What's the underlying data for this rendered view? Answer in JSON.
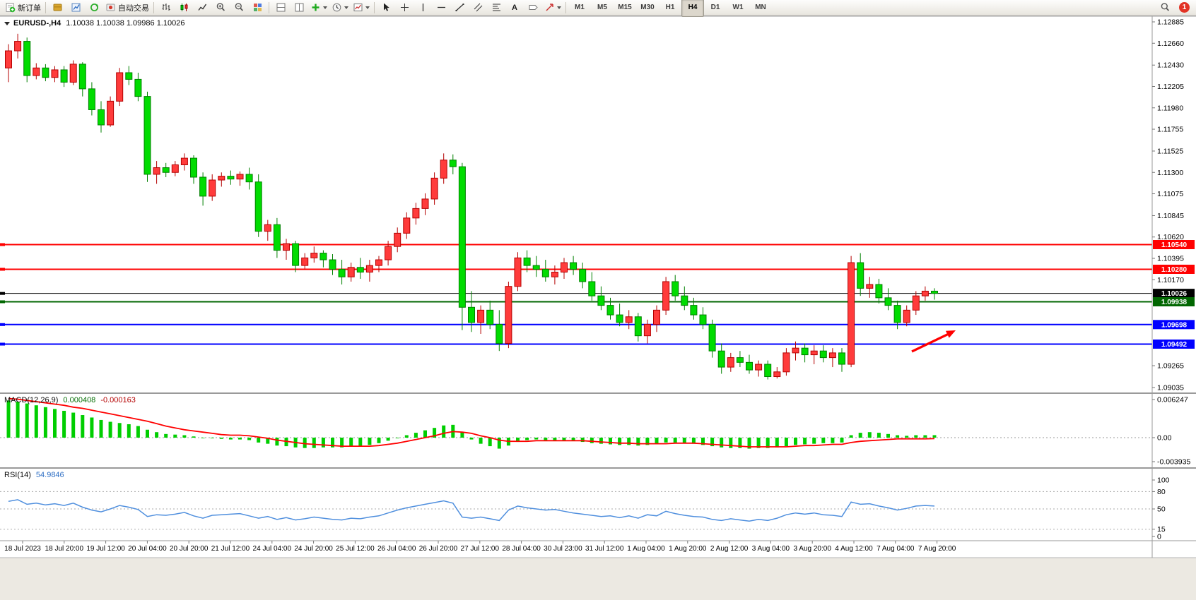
{
  "toolbar": {
    "new_order": "新订单",
    "autotrading": "自动交易",
    "text_tool_glyph": "A",
    "timeframes": [
      "M1",
      "M5",
      "M15",
      "M30",
      "H1",
      "H4",
      "D1",
      "W1",
      "MN"
    ],
    "active_timeframe": "H4",
    "notification_badge": "1"
  },
  "chart": {
    "title": "EURUSD-,H4",
    "ohlc_text": "1.10038 1.10038 1.09986 1.10026"
  },
  "colors": {
    "candle_up": "#FF3B3B",
    "candle_up_border": "#B40000",
    "candle_down": "#00DC00",
    "candle_down_border": "#008000",
    "macd_histogram": "#00CE00",
    "macd_signal": "#FF0000",
    "rsi_line": "#4F8FDE",
    "line_red": "#FF0000",
    "line_blue": "#0000FF",
    "line_green": "#006600",
    "line_black": "#000000",
    "arrow": "#FF0000"
  },
  "chart_data": {
    "type": "candlestick",
    "symbol": "EURUSD-",
    "period": "H4",
    "ohlc_current": {
      "open": 1.10038,
      "high": 1.10038,
      "low": 1.09986,
      "close": 1.10026
    },
    "price_axis": {
      "labels": [
        "1.12885",
        "1.12660",
        "1.12430",
        "1.12205",
        "1.11980",
        "1.11755",
        "1.11525",
        "1.11300",
        "1.11075",
        "1.10845",
        "1.10620",
        "1.10395",
        "1.10170",
        "1.09265",
        "1.09035"
      ]
    },
    "time_axis": {
      "labels": [
        "18 Jul 2023",
        "18 Jul 20:00",
        "19 Jul 12:00",
        "20 Jul 04:00",
        "20 Jul 20:00",
        "21 Jul 12:00",
        "24 Jul 04:00",
        "24 Jul 20:00",
        "25 Jul 12:00",
        "26 Jul 04:00",
        "26 Jul 20:00",
        "27 Jul 12:00",
        "28 Jul 04:00",
        "30 Jul 23:00",
        "31 Jul 12:00",
        "1 Aug 04:00",
        "1 Aug 20:00",
        "2 Aug 12:00",
        "3 Aug 04:00",
        "3 Aug 20:00",
        "4 Aug 12:00",
        "7 Aug 04:00",
        "7 Aug 20:00"
      ]
    },
    "hlines": [
      {
        "price": 1.1054,
        "label": "1.10540",
        "color": "#FF0000",
        "width": 2
      },
      {
        "price": 1.1028,
        "label": "1.10280",
        "color": "#FF0000",
        "width": 2
      },
      {
        "price": 1.10026,
        "label": "1.10026",
        "color": "#000000",
        "width": 1
      },
      {
        "price": 1.09938,
        "label": "1.09938",
        "color": "#006600",
        "width": 2
      },
      {
        "price": 1.09698,
        "label": "1.09698",
        "color": "#0000FF",
        "width": 2
      },
      {
        "price": 1.09492,
        "label": "1.09492",
        "color": "#0000FF",
        "width": 2
      }
    ],
    "candles": [
      [
        1.124,
        1.1265,
        1.1225,
        1.1258
      ],
      [
        1.1258,
        1.1276,
        1.125,
        1.1268
      ],
      [
        1.1268,
        1.1272,
        1.1225,
        1.1232
      ],
      [
        1.1232,
        1.1245,
        1.1228,
        1.124
      ],
      [
        1.124,
        1.1244,
        1.1226,
        1.123
      ],
      [
        1.123,
        1.1242,
        1.1225,
        1.1238
      ],
      [
        1.1238,
        1.1242,
        1.122,
        1.1225
      ],
      [
        1.1225,
        1.1248,
        1.1222,
        1.1244
      ],
      [
        1.1244,
        1.1246,
        1.121,
        1.1218
      ],
      [
        1.1218,
        1.1225,
        1.119,
        1.1196
      ],
      [
        1.1196,
        1.1205,
        1.1172,
        1.118
      ],
      [
        1.118,
        1.121,
        1.1178,
        1.1205
      ],
      [
        1.1205,
        1.124,
        1.12,
        1.1235
      ],
      [
        1.1235,
        1.1242,
        1.1222,
        1.1228
      ],
      [
        1.1228,
        1.1235,
        1.1205,
        1.121
      ],
      [
        1.121,
        1.1215,
        1.112,
        1.1128
      ],
      [
        1.1128,
        1.1142,
        1.1118,
        1.1135
      ],
      [
        1.1135,
        1.114,
        1.1125,
        1.113
      ],
      [
        1.113,
        1.1142,
        1.1126,
        1.1138
      ],
      [
        1.1138,
        1.115,
        1.1132,
        1.1145
      ],
      [
        1.1145,
        1.1148,
        1.1118,
        1.1125
      ],
      [
        1.1125,
        1.113,
        1.1095,
        1.1105
      ],
      [
        1.1105,
        1.1128,
        1.11,
        1.1122
      ],
      [
        1.1122,
        1.113,
        1.1115,
        1.1126
      ],
      [
        1.1126,
        1.1132,
        1.1117,
        1.1123
      ],
      [
        1.1123,
        1.1131,
        1.1116,
        1.1128
      ],
      [
        1.1128,
        1.1135,
        1.1112,
        1.112
      ],
      [
        1.112,
        1.1128,
        1.1062,
        1.1068
      ],
      [
        1.1068,
        1.108,
        1.1058,
        1.1075
      ],
      [
        1.1075,
        1.1082,
        1.104,
        1.1048
      ],
      [
        1.1048,
        1.106,
        1.1038,
        1.1055
      ],
      [
        1.1055,
        1.1058,
        1.1025,
        1.1032
      ],
      [
        1.1032,
        1.1045,
        1.1028,
        1.104
      ],
      [
        1.104,
        1.1052,
        1.1035,
        1.1045
      ],
      [
        1.1045,
        1.1048,
        1.103,
        1.1038
      ],
      [
        1.1038,
        1.1044,
        1.1022,
        1.1028
      ],
      [
        1.1028,
        1.1038,
        1.1012,
        1.102
      ],
      [
        1.102,
        1.1035,
        1.1015,
        1.103
      ],
      [
        1.103,
        1.104,
        1.1018,
        1.1025
      ],
      [
        1.1025,
        1.1038,
        1.1015,
        1.1032
      ],
      [
        1.1032,
        1.1042,
        1.1025,
        1.1038
      ],
      [
        1.1038,
        1.1058,
        1.1032,
        1.1052
      ],
      [
        1.1052,
        1.1072,
        1.1046,
        1.1066
      ],
      [
        1.1066,
        1.1088,
        1.106,
        1.1082
      ],
      [
        1.1082,
        1.1098,
        1.1075,
        1.1092
      ],
      [
        1.1092,
        1.1108,
        1.1085,
        1.1102
      ],
      [
        1.1102,
        1.113,
        1.1096,
        1.1124
      ],
      [
        1.1124,
        1.115,
        1.1118,
        1.1143
      ],
      [
        1.1143,
        1.1149,
        1.1128,
        1.1136
      ],
      [
        1.1136,
        1.114,
        1.0964,
        1.0988
      ],
      [
        1.0988,
        1.1005,
        1.0962,
        1.0972
      ],
      [
        1.0972,
        1.099,
        1.096,
        1.0985
      ],
      [
        1.0985,
        1.0995,
        1.0965,
        1.097
      ],
      [
        1.097,
        1.0985,
        1.0942,
        1.095
      ],
      [
        1.095,
        1.1015,
        1.0945,
        1.101
      ],
      [
        1.101,
        1.1046,
        1.1005,
        1.104
      ],
      [
        1.104,
        1.1048,
        1.1025,
        1.1032
      ],
      [
        1.1032,
        1.1042,
        1.102,
        1.1028
      ],
      [
        1.1028,
        1.1038,
        1.1015,
        1.102
      ],
      [
        1.102,
        1.1032,
        1.1012,
        1.1025
      ],
      [
        1.1025,
        1.104,
        1.1018,
        1.1035
      ],
      [
        1.1035,
        1.1042,
        1.1022,
        1.1028
      ],
      [
        1.1028,
        1.1035,
        1.1008,
        1.1015
      ],
      [
        1.1015,
        1.1025,
        1.0995,
        1.1
      ],
      [
        1.1,
        1.101,
        1.0985,
        1.099
      ],
      [
        1.099,
        1.0998,
        1.0975,
        1.098
      ],
      [
        1.098,
        1.0992,
        1.0968,
        1.0972
      ],
      [
        1.0972,
        1.0985,
        1.0965,
        1.0978
      ],
      [
        1.0978,
        1.0982,
        1.0952,
        1.0958
      ],
      [
        1.0958,
        1.0975,
        1.095,
        1.097
      ],
      [
        1.097,
        1.099,
        1.0962,
        1.0985
      ],
      [
        1.0985,
        1.102,
        1.098,
        1.1015
      ],
      [
        1.1015,
        1.1022,
        1.0995,
        1.1
      ],
      [
        1.1,
        1.101,
        1.0985,
        1.099
      ],
      [
        1.099,
        1.0998,
        1.0975,
        1.098
      ],
      [
        1.098,
        1.0988,
        1.0965,
        1.097
      ],
      [
        1.097,
        1.0975,
        1.0935,
        1.0942
      ],
      [
        1.0942,
        1.095,
        1.0918,
        1.0925
      ],
      [
        1.0925,
        1.094,
        1.092,
        1.0935
      ],
      [
        1.0935,
        1.0942,
        1.0925,
        1.093
      ],
      [
        1.093,
        1.0938,
        1.0918,
        1.0922
      ],
      [
        1.0922,
        1.0932,
        1.0915,
        1.0928
      ],
      [
        1.0928,
        1.0932,
        1.0912,
        1.0915
      ],
      [
        1.0915,
        1.0925,
        1.0913,
        1.092
      ],
      [
        1.092,
        1.0945,
        1.0916,
        1.094
      ],
      [
        1.094,
        1.0952,
        1.0932,
        1.0945
      ],
      [
        1.0945,
        1.095,
        1.093,
        1.0938
      ],
      [
        1.0938,
        1.0948,
        1.0928,
        1.0942
      ],
      [
        1.0942,
        1.0948,
        1.093,
        1.0935
      ],
      [
        1.0935,
        1.0945,
        1.0925,
        1.094
      ],
      [
        1.094,
        1.0945,
        1.092,
        1.0928
      ],
      [
        1.0928,
        1.1042,
        1.0925,
        1.1035
      ],
      [
        1.1035,
        1.1045,
        1.1,
        1.1008
      ],
      [
        1.1008,
        1.102,
        1.0998,
        1.1012
      ],
      [
        1.1012,
        1.1018,
        1.0992,
        1.0998
      ],
      [
        1.0998,
        1.1008,
        1.0985,
        1.099
      ],
      [
        1.099,
        1.0995,
        1.0965,
        1.0972
      ],
      [
        1.0972,
        1.099,
        1.0968,
        1.0985
      ],
      [
        1.0985,
        1.1005,
        1.098,
        1.1
      ],
      [
        1.1,
        1.101,
        1.0995,
        1.1005
      ],
      [
        1.1005,
        1.1008,
        1.0996,
        1.10026
      ]
    ],
    "macd": {
      "label": "MACD(12,26,9)",
      "main_value": "0.000408",
      "signal_value": "-0.000163",
      "axis_labels": [
        "0.006247",
        "0.00",
        "-0.003935"
      ],
      "histogram": [
        0.0061,
        0.0059,
        0.0056,
        0.0053,
        0.005,
        0.0047,
        0.0044,
        0.0041,
        0.0037,
        0.0033,
        0.0029,
        0.0026,
        0.0024,
        0.0022,
        0.0019,
        0.0013,
        0.0009,
        0.0006,
        0.0005,
        0.0004,
        0.0002,
        0.0,
        -0.0001,
        -0.0002,
        -0.0003,
        -0.0003,
        -0.0004,
        -0.0008,
        -0.001,
        -0.0013,
        -0.0014,
        -0.0016,
        -0.0017,
        -0.0017,
        -0.0016,
        -0.0016,
        -0.0016,
        -0.0015,
        -0.0014,
        -0.0012,
        -0.0009,
        -0.0005,
        -0.0001,
        0.0004,
        0.0008,
        0.0012,
        0.0016,
        0.002,
        0.0021,
        0.0009,
        -0.0003,
        -0.001,
        -0.0014,
        -0.0018,
        -0.0013,
        -0.0007,
        -0.0004,
        -0.0003,
        -0.0004,
        -0.0004,
        -0.0004,
        -0.0005,
        -0.0007,
        -0.0009,
        -0.001,
        -0.0011,
        -0.0012,
        -0.0012,
        -0.0013,
        -0.0012,
        -0.001,
        -0.0008,
        -0.0008,
        -0.0009,
        -0.001,
        -0.0012,
        -0.0014,
        -0.0016,
        -0.0017,
        -0.0017,
        -0.0018,
        -0.0017,
        -0.0017,
        -0.0016,
        -0.0014,
        -0.0012,
        -0.0011,
        -0.001,
        -0.0009,
        -0.0009,
        -0.0008,
        0.0004,
        0.0008,
        0.0009,
        0.0008,
        0.0006,
        0.0004,
        0.0003,
        0.0004,
        0.0004,
        0.000408
      ],
      "signal": [
        0.0064,
        0.0063,
        0.0061,
        0.0059,
        0.0057,
        0.0055,
        0.0053,
        0.005,
        0.0048,
        0.0045,
        0.0042,
        0.0039,
        0.0036,
        0.0033,
        0.003,
        0.0027,
        0.0023,
        0.0019,
        0.0016,
        0.0013,
        0.0011,
        0.0009,
        0.0007,
        0.0005,
        0.0004,
        0.0004,
        0.0003,
        0.0001,
        -0.0001,
        -0.0004,
        -0.0006,
        -0.0008,
        -0.001,
        -0.0011,
        -0.0012,
        -0.0013,
        -0.0014,
        -0.0014,
        -0.0014,
        -0.0014,
        -0.0013,
        -0.0011,
        -0.0009,
        -0.0006,
        -0.0003,
        0.0,
        0.0003,
        0.0007,
        0.001,
        0.0009,
        0.0007,
        0.0003,
        0.0,
        -0.0004,
        -0.0006,
        -0.0006,
        -0.0006,
        -0.0005,
        -0.0005,
        -0.0005,
        -0.0005,
        -0.0005,
        -0.0005,
        -0.0006,
        -0.0007,
        -0.0008,
        -0.0009,
        -0.0009,
        -0.001,
        -0.001,
        -0.001,
        -0.001,
        -0.0009,
        -0.0009,
        -0.0009,
        -0.001,
        -0.0011,
        -0.0012,
        -0.0013,
        -0.0014,
        -0.0015,
        -0.0015,
        -0.0015,
        -0.0015,
        -0.0015,
        -0.0014,
        -0.0013,
        -0.0013,
        -0.0012,
        -0.0011,
        -0.0011,
        -0.0008,
        -0.0006,
        -0.0005,
        -0.0004,
        -0.0003,
        -0.0002,
        -0.0002,
        -0.0002,
        -0.0002,
        -0.000163
      ]
    },
    "rsi": {
      "label": "RSI(14)",
      "value": "54.9846",
      "axis_labels": [
        "100",
        "80",
        "50",
        "15",
        "0"
      ],
      "levels": [
        80,
        50,
        15
      ],
      "values": [
        63,
        66,
        58,
        60,
        57,
        59,
        56,
        60,
        53,
        48,
        45,
        50,
        56,
        53,
        49,
        37,
        40,
        39,
        41,
        44,
        38,
        34,
        39,
        40,
        41,
        42,
        38,
        34,
        37,
        32,
        35,
        31,
        33,
        36,
        34,
        32,
        31,
        34,
        33,
        36,
        38,
        43,
        48,
        52,
        55,
        58,
        61,
        64,
        60,
        36,
        34,
        36,
        33,
        30,
        48,
        55,
        52,
        50,
        48,
        49,
        46,
        43,
        41,
        39,
        37,
        38,
        35,
        38,
        34,
        40,
        38,
        46,
        42,
        39,
        37,
        36,
        32,
        30,
        33,
        31,
        29,
        32,
        30,
        34,
        40,
        43,
        41,
        43,
        40,
        39,
        37,
        62,
        58,
        59,
        55,
        52,
        48,
        51,
        55,
        56,
        54.98
      ]
    },
    "annotations": [
      {
        "type": "arrow",
        "color": "#FF0000",
        "direction": "up-right",
        "area": "pointing toward 1.09698 support near 7 Aug"
      }
    ]
  }
}
